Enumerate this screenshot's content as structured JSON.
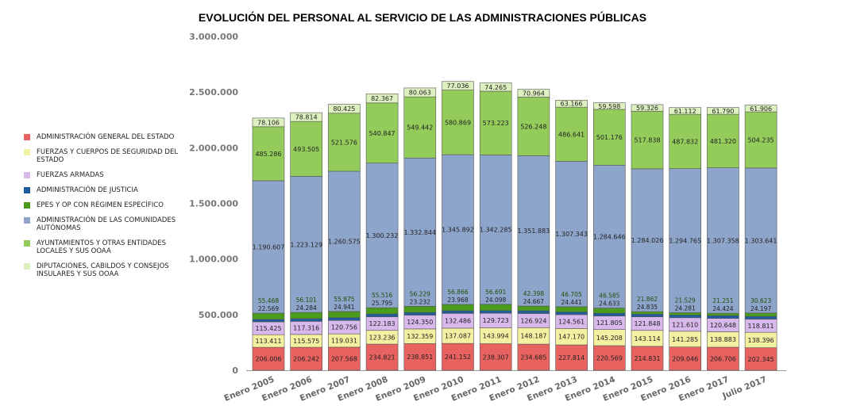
{
  "chart_data": {
    "type": "bar",
    "stacked": true,
    "title": "EVOLUCIÓN DEL PERSONAL AL SERVICIO DE LAS ADMINISTRACIONES PÚBLICAS",
    "categories": [
      "Enero 2005",
      "Enero 2006",
      "Enero 2007",
      "Enero 2008",
      "Enero 2009",
      "Enero 2010",
      "Enero 2011",
      "Enero 2012",
      "Enero 2013",
      "Enero 2014",
      "Enero 2015",
      "Enero 2016",
      "Enero 2017",
      "Julio 2017"
    ],
    "ylim": [
      0,
      3000000
    ],
    "yticks": [
      0,
      500000,
      1000000,
      1500000,
      2000000,
      2500000,
      3000000
    ],
    "ytick_labels": [
      "0",
      "500.000",
      "1.000.000",
      "1.500.000",
      "2.000.000",
      "2.500.000",
      "3.000.000"
    ],
    "legend_position": "left",
    "series": [
      {
        "name": "Administración General del Estado",
        "color": "#e8625f",
        "values": [
          206006,
          206242,
          207568,
          234821,
          238851,
          241152,
          238307,
          234685,
          227814,
          220569,
          214831,
          209046,
          206706,
          202345
        ]
      },
      {
        "name": "Fuerzas y Cuerpos de Seguridad del Estado",
        "color": "#f4f0a2",
        "values": [
          113411,
          115575,
          119031,
          123236,
          132359,
          137087,
          143994,
          148187,
          147170,
          145208,
          143114,
          141285,
          138883,
          138396
        ]
      },
      {
        "name": "Fuerzas Armadas",
        "color": "#d7b9ec",
        "values": [
          115425,
          117316,
          120756,
          122183,
          124350,
          132486,
          129723,
          126924,
          124561,
          121805,
          121848,
          121610,
          120648,
          118811
        ]
      },
      {
        "name": "Administración de Justicia",
        "color": "#1f5d9e",
        "values": [
          22569,
          24284,
          24941,
          25795,
          23232,
          23968,
          24098,
          24667,
          24441,
          24633,
          24835,
          24281,
          24424,
          24197
        ]
      },
      {
        "name": "EPES y OP con régimen específico",
        "color": "#4b9b1c",
        "values": [
          55468,
          56101,
          55875,
          55516,
          56229,
          56866,
          56691,
          42398,
          46705,
          46585,
          21862,
          21529,
          21251,
          30623
        ]
      },
      {
        "name": "Administración de las Comunidades Autónomas",
        "color": "#8ea5cb",
        "values": [
          1190607,
          1223129,
          1260575,
          1300232,
          1332844,
          1345892,
          1342285,
          1351883,
          1307343,
          1284646,
          1284026,
          1294765,
          1307358,
          1303641
        ]
      },
      {
        "name": "Ayuntamientos y otras Entidades Locales y sus OOAA",
        "color": "#93cc5b",
        "values": [
          485286,
          493505,
          521576,
          540847,
          549442,
          580869,
          573223,
          526248,
          486641,
          501176,
          517838,
          487832,
          481320,
          504235
        ]
      },
      {
        "name": "Diputaciones, Cabildos y Consejos Insulares y sus OOAA",
        "color": "#def0c0",
        "values": [
          78106,
          78814,
          80425,
          82367,
          80063,
          77036,
          74265,
          70964,
          63166,
          59598,
          59326,
          61112,
          61790,
          61906
        ]
      }
    ]
  }
}
